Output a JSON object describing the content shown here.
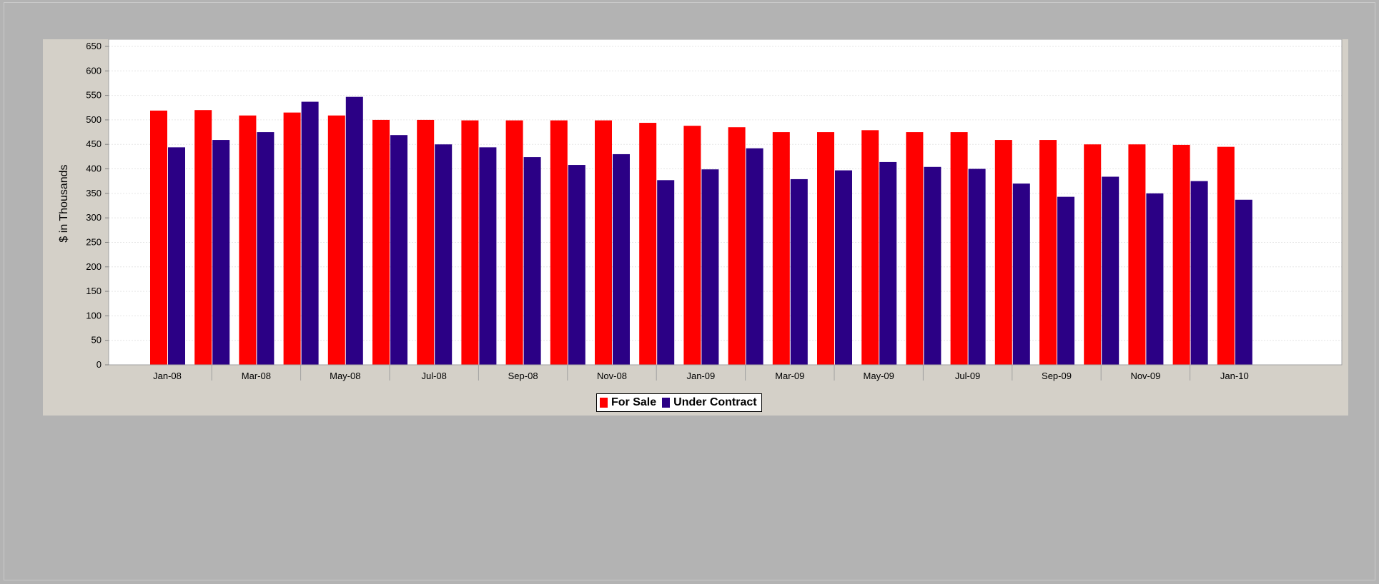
{
  "colors": {
    "for_sale": "#ff0000",
    "under_contract": "#2b0085"
  },
  "legend": {
    "for_sale": "For Sale",
    "under_contract": "Under Contract"
  },
  "chart_data": {
    "type": "bar",
    "title": "",
    "xlabel": "",
    "ylabel": "$ in Thousands",
    "ylim": [
      0,
      650
    ],
    "yticks": [
      0,
      50,
      100,
      150,
      200,
      250,
      300,
      350,
      400,
      450,
      500,
      550,
      600,
      650
    ],
    "grid": true,
    "legend_position": "bottom",
    "categories": [
      "Jan-08",
      "Feb-08",
      "Mar-08",
      "Apr-08",
      "May-08",
      "Jun-08",
      "Jul-08",
      "Aug-08",
      "Sep-08",
      "Oct-08",
      "Nov-08",
      "Dec-08",
      "Jan-09",
      "Feb-09",
      "Mar-09",
      "Apr-09",
      "May-09",
      "Jun-09",
      "Jul-09",
      "Aug-09",
      "Sep-09",
      "Oct-09",
      "Nov-09",
      "Dec-09",
      "Jan-10"
    ],
    "xtick_labels": [
      "Jan-08",
      "Mar-08",
      "May-08",
      "Jul-08",
      "Sep-08",
      "Nov-08",
      "Jan-09",
      "Mar-09",
      "May-09",
      "Jul-09",
      "Sep-09",
      "Nov-09",
      "Jan-10"
    ],
    "series": [
      {
        "name": "For Sale",
        "values": [
          519,
          520,
          509,
          515,
          509,
          500,
          500,
          499,
          499,
          499,
          499,
          494,
          488,
          485,
          475,
          475,
          479,
          475,
          475,
          459,
          459,
          450,
          450,
          449,
          445
        ]
      },
      {
        "name": "Under Contract",
        "values": [
          444,
          459,
          475,
          537,
          547,
          469,
          450,
          444,
          424,
          408,
          430,
          377,
          399,
          442,
          379,
          397,
          414,
          404,
          400,
          370,
          343,
          384,
          350,
          375,
          337
        ]
      }
    ]
  }
}
